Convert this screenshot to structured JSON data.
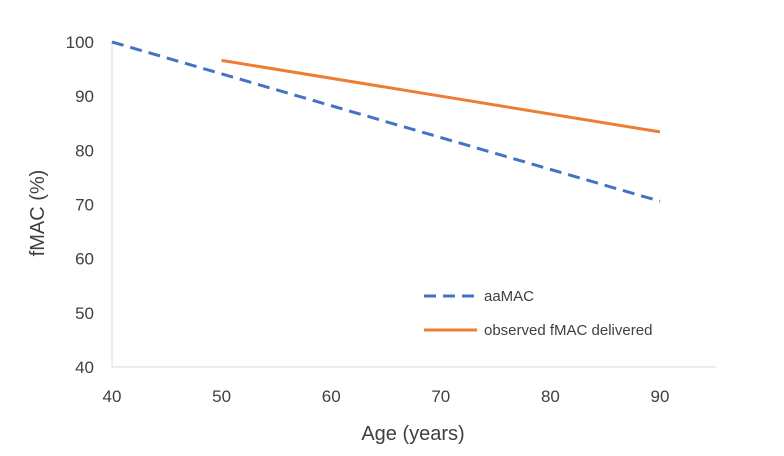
{
  "chart_data": {
    "type": "line",
    "title": "",
    "xlabel": "Age (years)",
    "ylabel": "fMAC (%)",
    "xlim": [
      40,
      90
    ],
    "ylim": [
      40,
      100
    ],
    "x_ticks": [
      40,
      50,
      60,
      70,
      80,
      90
    ],
    "y_ticks": [
      40,
      50,
      60,
      70,
      80,
      90,
      100
    ],
    "x_tick_labels": [
      "40",
      "50",
      "60",
      "70",
      "80",
      "90"
    ],
    "y_tick_labels": [
      "40",
      "50",
      "60",
      "70",
      "80",
      "90",
      "100"
    ],
    "grid": false,
    "legend_position": "lower-right",
    "series": [
      {
        "name": "aaMAC",
        "style": "dashed",
        "color": "#4472C4",
        "x": [
          40,
          90
        ],
        "y": [
          100,
          70.6
        ]
      },
      {
        "name": "observed fMAC delivered",
        "style": "solid",
        "color": "#ED7D31",
        "x": [
          50,
          90
        ],
        "y": [
          96.6,
          83.4
        ]
      }
    ]
  }
}
